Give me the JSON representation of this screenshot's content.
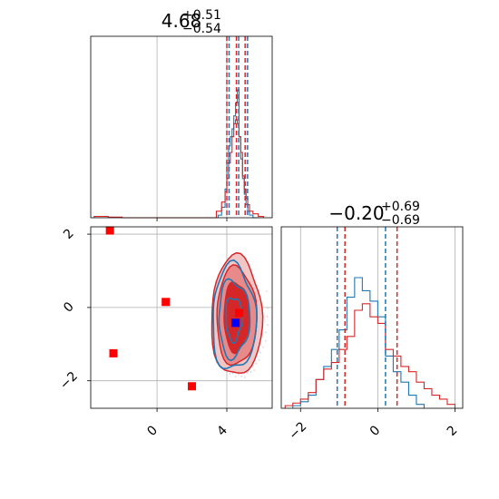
{
  "chart_data": [
    {
      "type": "histogram",
      "panel": "top-left",
      "title": {
        "main": "4.68",
        "sup": "+0.51",
        "sub": "−0.54"
      },
      "xlim": [
        -3.8,
        6.6
      ],
      "grid": true,
      "x_ticks": [
        0,
        4
      ],
      "quantile_lines": {
        "blue": [
          4.13,
          4.68,
          5.19
        ],
        "red": [
          4.0,
          4.55,
          5.05
        ]
      },
      "series": [
        {
          "color": "#1f77b4",
          "bin_edges": [
            3.5,
            3.7,
            3.9,
            4.0,
            4.1,
            4.2,
            4.3,
            4.4,
            4.5,
            4.6,
            4.7,
            4.8,
            4.9,
            5.0,
            5.1,
            5.2,
            5.3,
            5.5,
            5.8
          ],
          "counts": [
            0.02,
            0.08,
            0.22,
            0.42,
            0.55,
            0.62,
            0.68,
            0.78,
            0.88,
            0.98,
            0.62,
            0.45,
            0.3,
            0.18,
            0.1,
            0.05,
            0.02,
            0.0
          ]
        },
        {
          "color": "#d62728",
          "bin_edges": [
            -3.6,
            -2.8,
            -2.0,
            3.4,
            3.7,
            3.9,
            4.0,
            4.1,
            4.2,
            4.3,
            4.4,
            4.5,
            4.6,
            4.7,
            4.8,
            4.9,
            5.0,
            5.1,
            5.2,
            5.3,
            5.5,
            5.8,
            6.1
          ],
          "counts": [
            0.01,
            0.005,
            0.0,
            0.05,
            0.12,
            0.2,
            0.3,
            0.42,
            0.5,
            0.62,
            0.72,
            0.75,
            0.72,
            0.62,
            0.5,
            0.32,
            0.22,
            0.15,
            0.1,
            0.05,
            0.03,
            0.01
          ]
        }
      ]
    },
    {
      "type": "scatter",
      "panel": "bottom-left",
      "xlim": [
        -3.8,
        6.6
      ],
      "ylim": [
        -2.75,
        2.2
      ],
      "grid": true,
      "x_ticks": [
        0,
        4
      ],
      "y_ticks": [
        -2,
        0,
        2
      ],
      "red_points": [
        [
          -2.7,
          2.1
        ],
        [
          0.5,
          0.15
        ],
        [
          -2.5,
          -1.25
        ],
        [
          2.0,
          -2.15
        ],
        [
          4.7,
          -0.15
        ]
      ],
      "blue_points": [
        [
          4.5,
          -0.42
        ]
      ],
      "contours": {
        "red_center": [
          4.55,
          -0.25
        ],
        "blue_center": [
          4.4,
          -0.3
        ]
      }
    },
    {
      "type": "histogram",
      "panel": "bottom-right",
      "title": {
        "main": "−0.20",
        "sup": "+0.69",
        "sub": "−0.69"
      },
      "xlim": [
        -2.5,
        2.2
      ],
      "grid": true,
      "x_ticks": [
        -2,
        0,
        2
      ],
      "quantile_lines": {
        "blue": [
          -1.05,
          0.2
        ],
        "red": [
          -0.85,
          0.5
        ]
      },
      "series": [
        {
          "color": "#1f77b4",
          "bin_edges": [
            -2.2,
            -2.0,
            -1.8,
            -1.6,
            -1.4,
            -1.2,
            -1.0,
            -0.8,
            -0.6,
            -0.4,
            -0.2,
            0.0,
            0.2,
            0.4,
            0.6,
            0.8,
            1.0,
            1.2
          ],
          "counts": [
            0.02,
            0.05,
            0.1,
            0.22,
            0.32,
            0.45,
            0.6,
            0.85,
            1.0,
            0.9,
            0.82,
            0.7,
            0.4,
            0.28,
            0.2,
            0.1,
            0.03
          ]
        },
        {
          "color": "#d62728",
          "bin_edges": [
            -2.4,
            -2.2,
            -2.0,
            -1.8,
            -1.6,
            -1.4,
            -1.2,
            -1.0,
            -0.8,
            -0.6,
            -0.4,
            -0.2,
            0.0,
            0.2,
            0.4,
            0.6,
            0.8,
            1.0,
            1.2,
            1.4,
            1.6,
            1.8,
            2.0
          ],
          "counts": [
            0.02,
            0.04,
            0.07,
            0.12,
            0.22,
            0.3,
            0.35,
            0.45,
            0.55,
            0.75,
            0.8,
            0.7,
            0.65,
            0.45,
            0.4,
            0.32,
            0.28,
            0.2,
            0.15,
            0.1,
            0.07,
            0.03
          ]
        }
      ]
    }
  ]
}
